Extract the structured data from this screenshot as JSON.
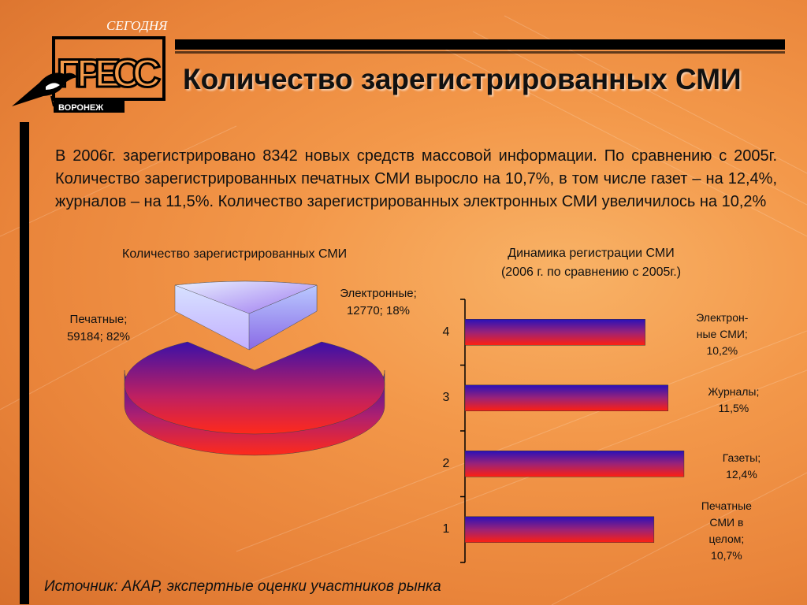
{
  "title": "Количество зарегистрированных СМИ",
  "intro": "В 2006г. зарегистрировано 8342 новых средств массовой информации. По сравнению с 2005г. Количество зарегистрированных печатных СМИ выросло на 10,7%, в том числе газет – на 12,4%, журналов – на 11,5%. Количество зарегистрированных электронных СМИ увеличилось на 10,2%",
  "source": "Источник: АКАР, экспертные оценки участников рынка",
  "logo": {
    "top_text": "СЕГОДНЯ",
    "main_text": "ПРЕСС",
    "city": "ВОРОНЕЖ"
  },
  "chart_data": [
    {
      "type": "pie",
      "title": "Количество зарегистрированных СМИ",
      "slices": [
        {
          "name": "Печатные",
          "value": 59184,
          "percent": 82,
          "label_line1": "Печатные;",
          "label_line2": "59184; 82%"
        },
        {
          "name": "Электронные",
          "value": 12770,
          "percent": 18,
          "label_line1": "Электронные;",
          "label_line2": "12770; 18%"
        }
      ]
    },
    {
      "type": "bar",
      "orientation": "horizontal",
      "title_line1": "Динамика регистрации СМИ",
      "title_line2": "(2006 г. по сравнению с 2005г.)",
      "categories": [
        "1",
        "2",
        "3",
        "4"
      ],
      "values": [
        10.7,
        12.4,
        11.5,
        10.2
      ],
      "xlim": [
        0,
        14.5
      ],
      "bar_labels": [
        [
          "Печатные",
          "СМИ в",
          "целом;",
          "10,7%"
        ],
        [
          "Газеты;",
          "12,4%"
        ],
        [
          "Журналы;",
          "11,5%"
        ],
        [
          "Электрон-",
          "ные СМИ;",
          "10,2%"
        ]
      ]
    }
  ]
}
